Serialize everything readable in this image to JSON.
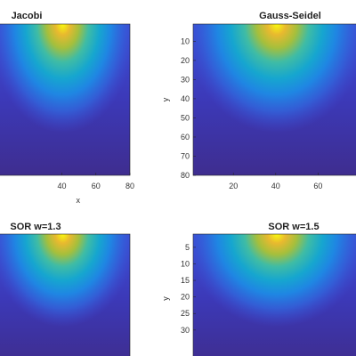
{
  "chart_data": [
    {
      "type": "heatmap",
      "title": "Jacobi",
      "xlabel": "x",
      "ylabel": "",
      "x_ticks": [
        40,
        60,
        80
      ],
      "y_ticks": [],
      "xlim": [
        1,
        80
      ],
      "ylim": [
        1,
        80
      ],
      "colormap": "parula",
      "hot_spot": "top-center"
    },
    {
      "type": "heatmap",
      "title": "Gauss-Seidel",
      "xlabel": "",
      "ylabel": "y",
      "x_ticks": [
        20,
        40,
        60
      ],
      "y_ticks": [
        10,
        20,
        30,
        40,
        50,
        60,
        70,
        80
      ],
      "xlim": [
        1,
        80
      ],
      "ylim": [
        1,
        80
      ],
      "colormap": "parula",
      "hot_spot": "top-center"
    },
    {
      "type": "heatmap",
      "title": "SOR w=1.3",
      "xlabel": "",
      "ylabel": "",
      "x_ticks": [],
      "y_ticks": [],
      "xlim": [
        1,
        40
      ],
      "ylim": [
        1,
        40
      ],
      "colormap": "parula",
      "hot_spot": "top-center"
    },
    {
      "type": "heatmap",
      "title": "SOR w=1.5",
      "xlabel": "",
      "ylabel": "y",
      "x_ticks": [],
      "y_ticks": [
        5,
        10,
        15,
        20,
        25,
        30
      ],
      "xlim": [
        1,
        40
      ],
      "ylim": [
        1,
        40
      ],
      "colormap": "parula",
      "hot_spot": "top-center"
    }
  ]
}
